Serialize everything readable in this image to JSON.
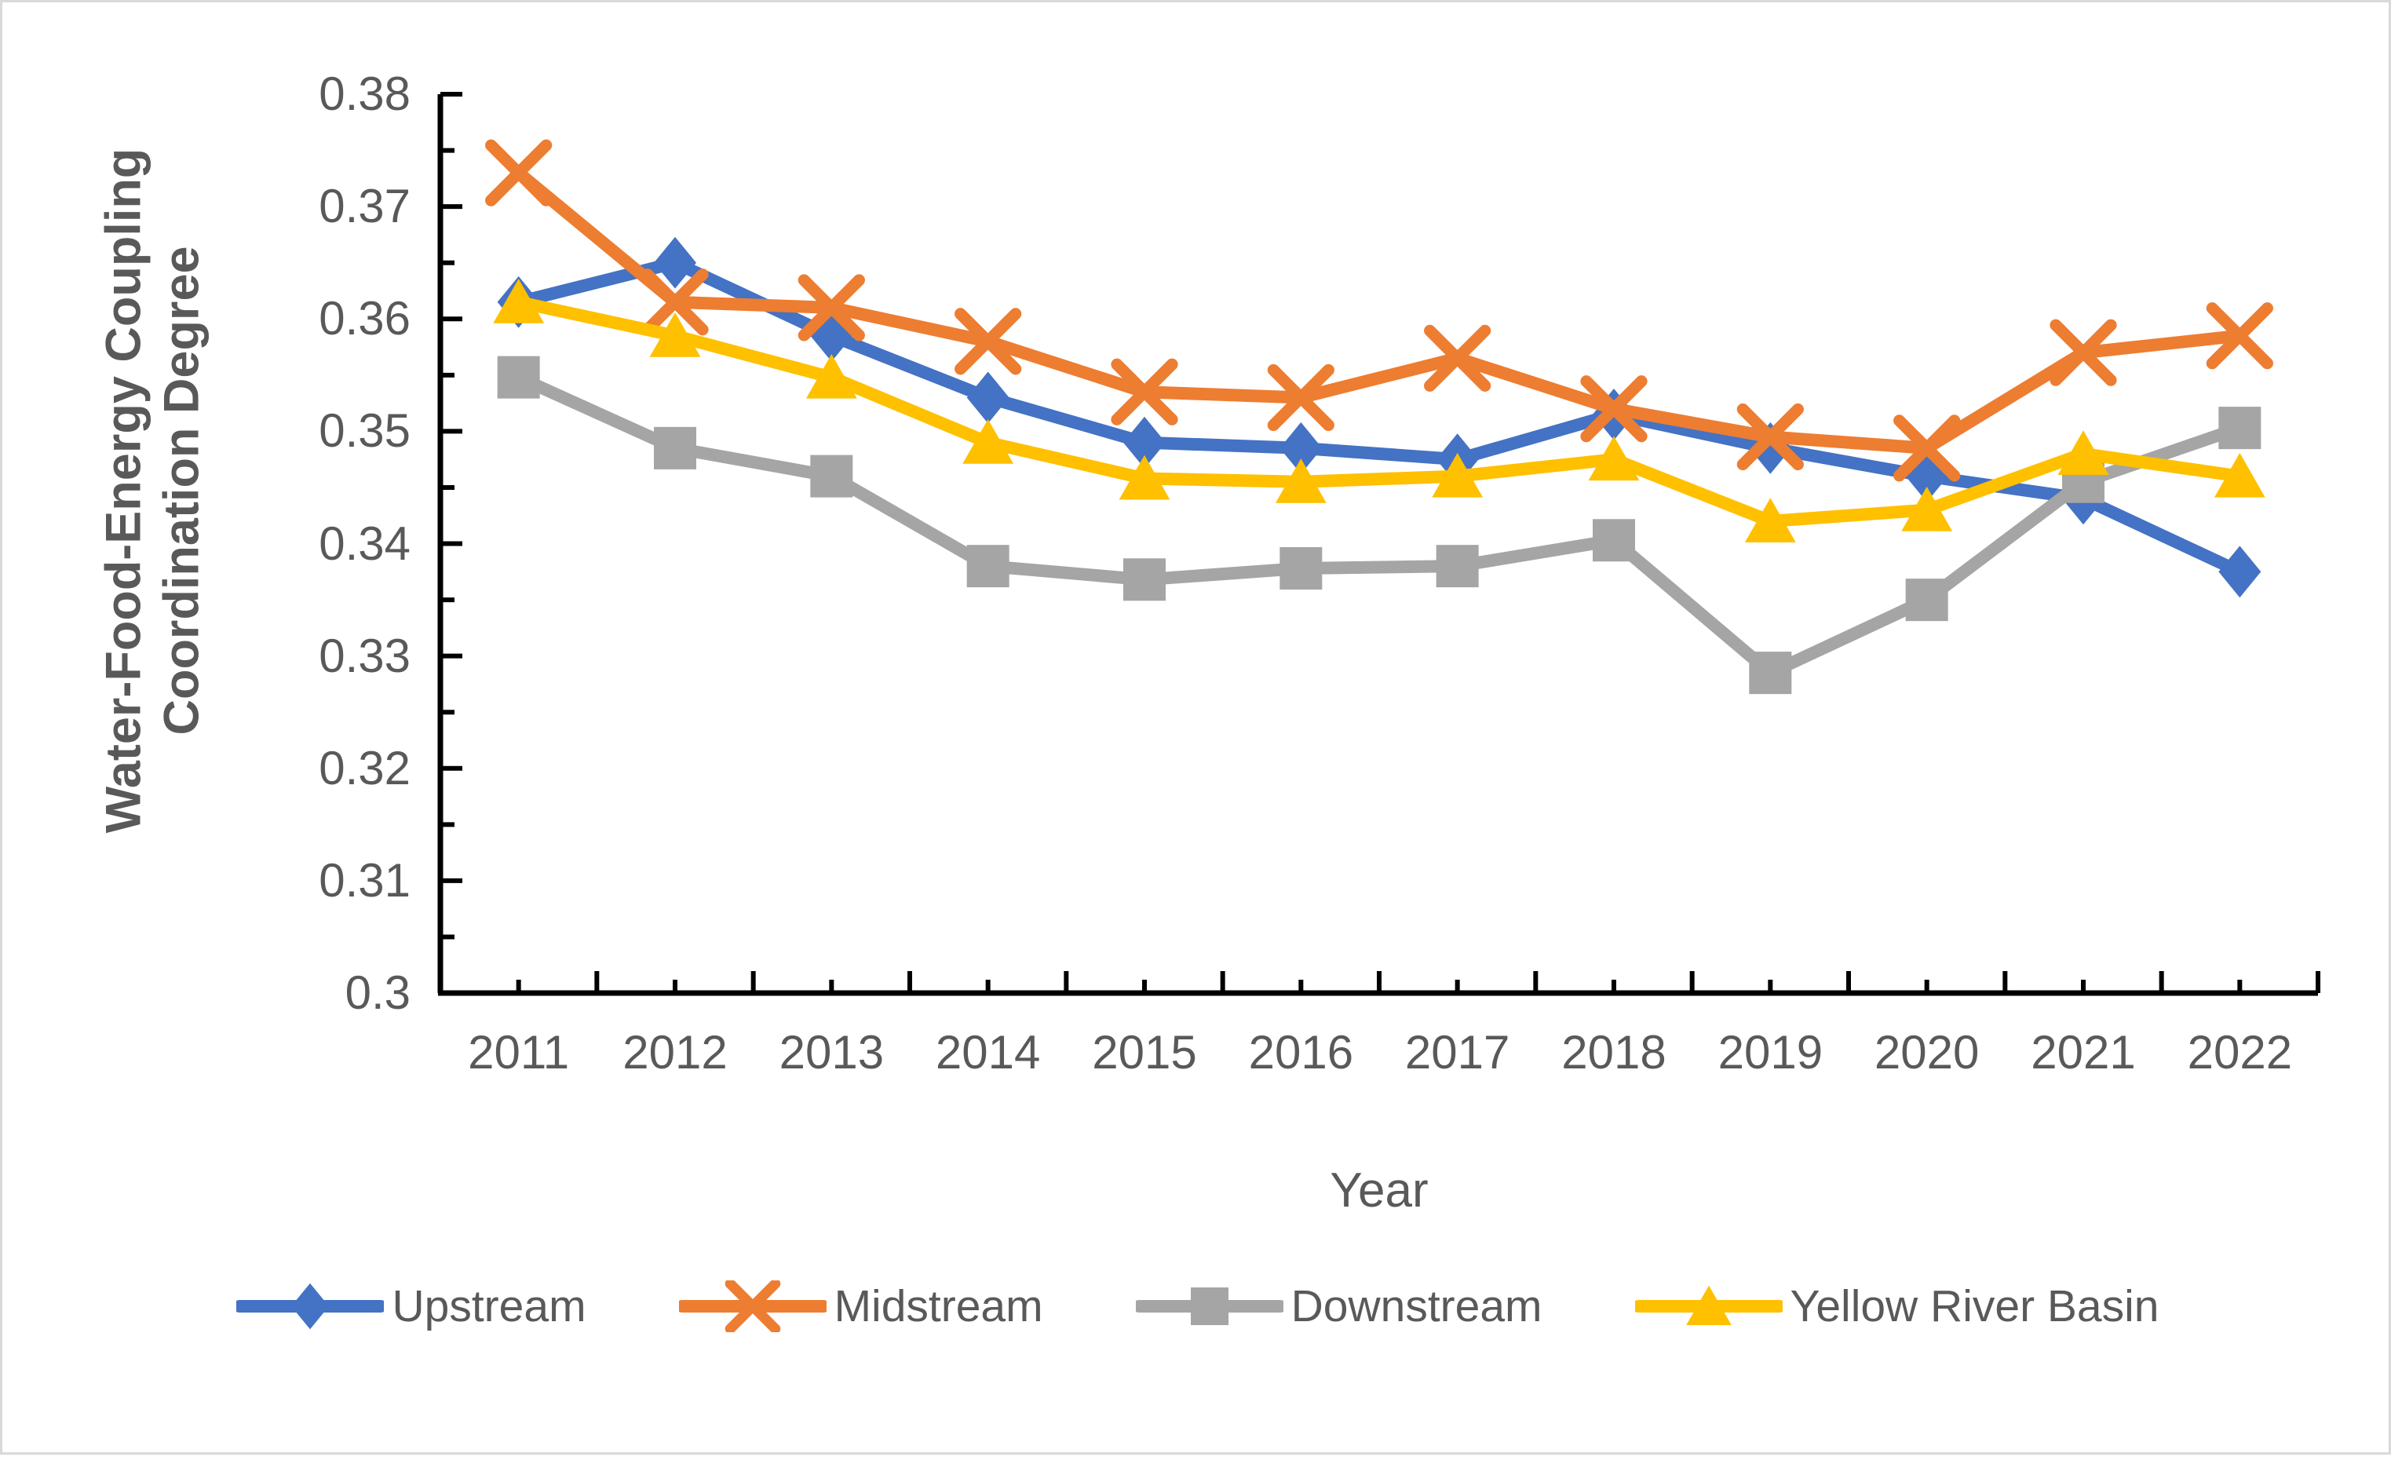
{
  "chart_data": {
    "type": "line",
    "title": "",
    "xlabel": "Year",
    "ylabel": "Water-Food-Energy Coupling Coordination Degree",
    "ylabel_lines": [
      "Water-Food-Energy Coupling",
      "Coordination Degree"
    ],
    "x": [
      2011,
      2012,
      2013,
      2014,
      2015,
      2016,
      2017,
      2018,
      2019,
      2020,
      2021,
      2022
    ],
    "series": [
      {
        "name": "Upstream",
        "color": "#4472C4",
        "marker": "diamond",
        "values": [
          0.3615,
          0.365,
          0.3585,
          0.353,
          0.349,
          0.3485,
          0.3475,
          0.3515,
          0.3485,
          0.346,
          0.344,
          0.3375
        ]
      },
      {
        "name": "Midstream",
        "color": "#ED7D31",
        "marker": "x",
        "values": [
          0.373,
          0.3615,
          0.361,
          0.358,
          0.3535,
          0.353,
          0.3565,
          0.352,
          0.3495,
          0.3485,
          0.357,
          0.3585
        ]
      },
      {
        "name": "Downstream",
        "color": "#A5A5A5",
        "marker": "square",
        "values": [
          0.3548,
          0.3485,
          0.346,
          0.338,
          0.3368,
          0.3378,
          0.338,
          0.3403,
          0.3285,
          0.335,
          0.3455,
          0.3503
        ]
      },
      {
        "name": "Yellow River Basin",
        "color": "#FFC000",
        "marker": "triangle",
        "values": [
          0.3615,
          0.3585,
          0.3548,
          0.349,
          0.3458,
          0.3455,
          0.346,
          0.3475,
          0.342,
          0.343,
          0.348,
          0.346
        ]
      }
    ],
    "ylim": [
      0.3,
      0.38
    ],
    "y_major_step": 0.01,
    "y_minor_step": 0.005,
    "y_tick_labels": [
      "0.3",
      "0.31",
      "0.32",
      "0.33",
      "0.34",
      "0.35",
      "0.36",
      "0.37",
      "0.38"
    ],
    "grid": false,
    "legend_position": "bottom"
  },
  "colors": {
    "axis": "#000000",
    "tick_text": "#595959",
    "frame_border": "#d9d9d9",
    "background": "#ffffff"
  }
}
